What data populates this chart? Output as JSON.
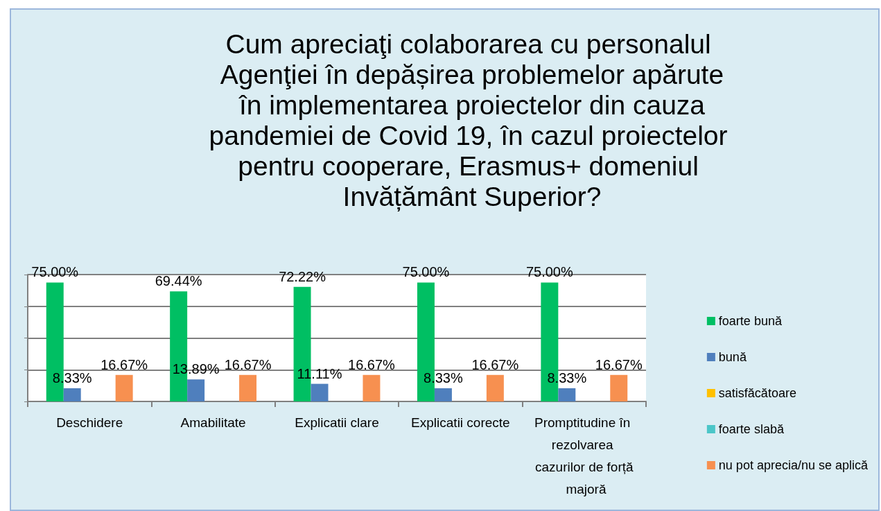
{
  "chart_data": {
    "type": "bar",
    "title": "Cum apreciaţi colaborarea cu personalul Agenţiei în depășirea problemelor apărute în implementarea proiectelor din cauza pandemiei de Covid 19, în cazul proiectelor pentru cooperare, Erasmus+ domeniul Invățământ Superior?",
    "categories": [
      "Deschidere",
      "Amabilitate",
      "Explicatii clare",
      "Explicatii corecte",
      "Promptitudine în rezolvarea cazurilor de forță majoră"
    ],
    "series": [
      {
        "name": "foarte bună",
        "color": "#00bf63",
        "values": [
          75.0,
          69.44,
          72.22,
          75.0,
          75.0
        ],
        "value_labels": [
          "75.00%",
          "69.44%",
          "72.22%",
          "75.00%",
          "75.00%"
        ]
      },
      {
        "name": "bună",
        "color": "#4f7fbd",
        "values": [
          8.33,
          13.89,
          11.11,
          8.33,
          8.33
        ],
        "value_labels": [
          "8.33%",
          "13.89%",
          "11.11%",
          "8.33%",
          "8.33%"
        ]
      },
      {
        "name": "satisfăcătoare",
        "color": "#ffc000",
        "values": [
          null,
          null,
          null,
          null,
          null
        ]
      },
      {
        "name": "foarte slabă",
        "color": "#4bc6c8",
        "values": [
          null,
          null,
          null,
          null,
          null
        ]
      },
      {
        "name": "nu pot aprecia/nu se aplică",
        "color": "#f79050",
        "values": [
          16.67,
          16.67,
          16.67,
          16.67,
          16.67
        ],
        "value_labels": [
          "16.67%",
          "16.67%",
          "16.67%",
          "16.67%",
          "16.67%"
        ]
      }
    ],
    "ylim": [
      0,
      80
    ],
    "yticks": [
      {
        "value": 0,
        "label": null
      },
      {
        "value": 20,
        "label": null
      },
      {
        "value": 40,
        "label": null
      },
      {
        "value": 60,
        "label": null
      },
      {
        "value": 80,
        "label": null
      }
    ],
    "tick_labels": "x",
    "grid": "y",
    "legend": "right"
  }
}
